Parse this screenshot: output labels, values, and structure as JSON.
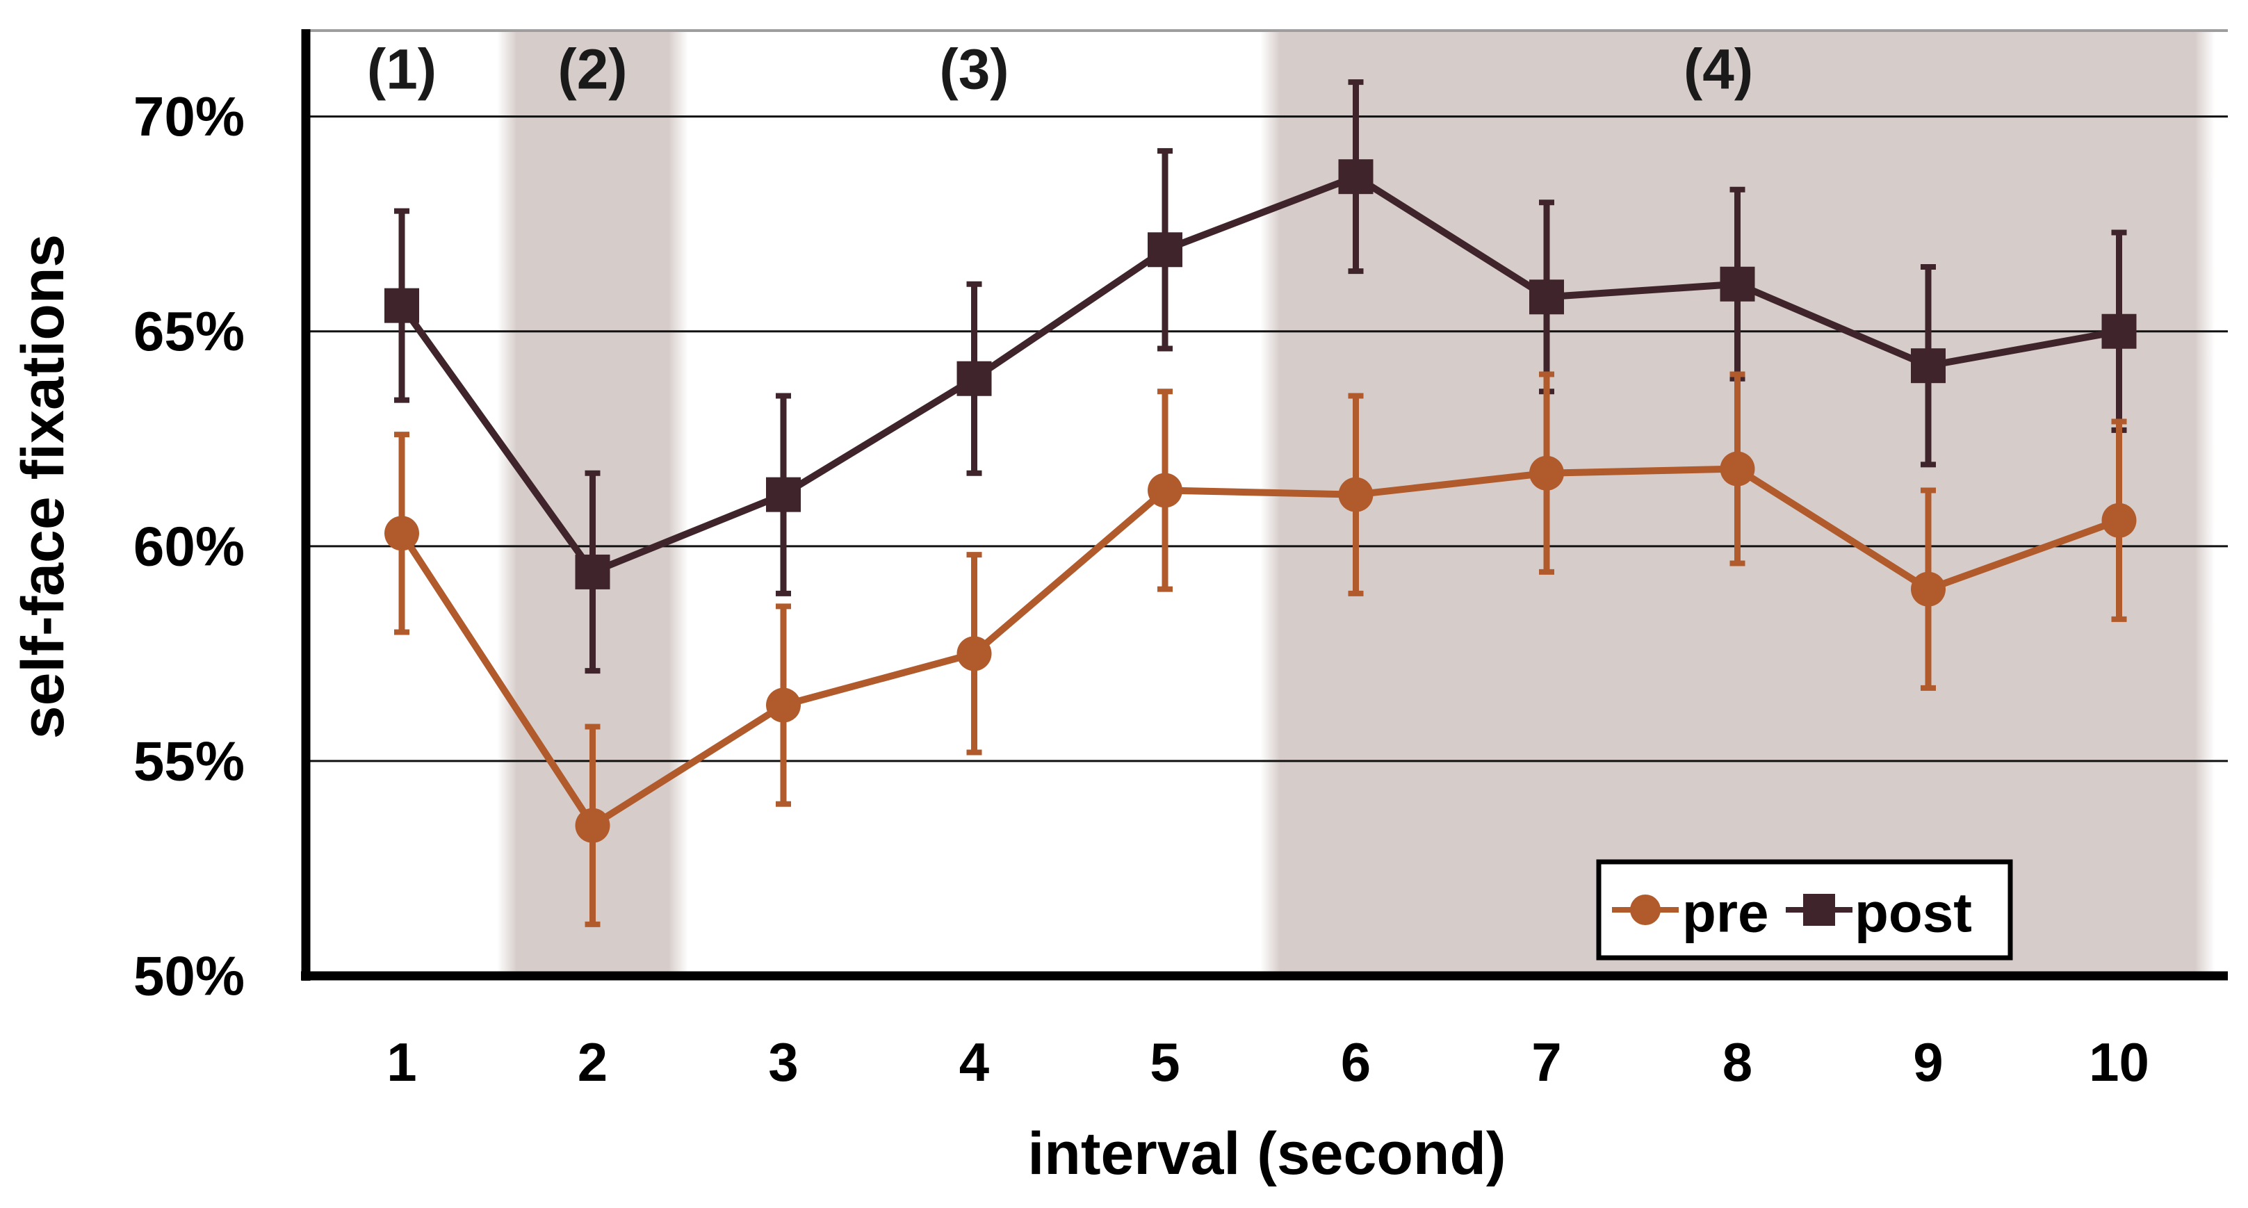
{
  "figure": {
    "background": "#ffffff",
    "plot_background": "#ffffff",
    "band_color": "#d6cdca",
    "grid_color": "#111111",
    "axis_color": "#000000",
    "top_border_color": "#9e9e9e",
    "text_color": "#000000",
    "annotation_color": "#1a1a1a"
  },
  "chart_data": {
    "type": "line",
    "title": "",
    "xlabel": "interval (second)",
    "ylabel": "self-face fixations",
    "x": [
      1,
      2,
      3,
      4,
      5,
      6,
      7,
      8,
      9,
      10
    ],
    "xtick_labels": [
      "1",
      "2",
      "3",
      "4",
      "5",
      "6",
      "7",
      "8",
      "9",
      "10"
    ],
    "xlim": [
      0.5,
      10.5
    ],
    "ylim": [
      50,
      72
    ],
    "yticks": [
      50,
      55,
      60,
      65,
      70
    ],
    "ytick_labels": [
      "50%",
      "55%",
      "60%",
      "65%",
      "70%"
    ],
    "grid": "horizontal",
    "legend_position": "bottom-right",
    "series": [
      {
        "name": "post",
        "marker": "square",
        "color": "#3f252b",
        "values": [
          65.6,
          59.4,
          61.2,
          63.9,
          66.9,
          68.6,
          65.8,
          66.1,
          64.2,
          65.0
        ],
        "err": [
          2.2,
          2.3,
          2.3,
          2.2,
          2.3,
          2.2,
          2.2,
          2.2,
          2.3,
          2.3
        ]
      },
      {
        "name": "pre",
        "marker": "circle",
        "color": "#b15a2b",
        "values": [
          60.3,
          53.5,
          56.3,
          57.5,
          61.3,
          61.2,
          61.7,
          61.8,
          59.0,
          60.6
        ],
        "err": [
          2.3,
          2.3,
          2.3,
          2.3,
          2.3,
          2.3,
          2.3,
          2.2,
          2.3,
          2.3
        ]
      }
    ],
    "legend_entries": [
      "pre",
      "post"
    ],
    "annotations": [
      {
        "label": "(1)",
        "x": 1.0
      },
      {
        "label": "(2)",
        "x": 2.0
      },
      {
        "label": "(3)",
        "x": 4.0
      },
      {
        "label": "(4)",
        "x": 7.9
      }
    ],
    "shaded_bands": [
      {
        "x_from": 1.5,
        "x_to": 2.5
      },
      {
        "x_from": 5.5,
        "x_to": 10.5
      }
    ]
  }
}
